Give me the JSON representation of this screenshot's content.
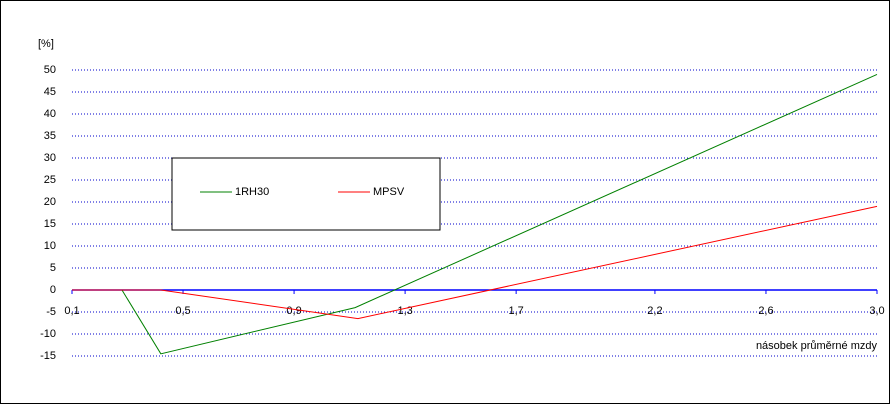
{
  "chart_data": {
    "type": "line",
    "y_label": "[%]",
    "x_label": "násobek průměrné mzdy",
    "xlim": [
      0.1,
      3.0
    ],
    "xticks": [
      {
        "value": 0.1,
        "label": "0,1"
      },
      {
        "value": 0.5,
        "label": "0,5"
      },
      {
        "value": 0.9,
        "label": "0,9"
      },
      {
        "value": 1.3,
        "label": "1,3"
      },
      {
        "value": 1.7,
        "label": "1,7"
      },
      {
        "value": 2.2,
        "label": "2,2"
      },
      {
        "value": 2.6,
        "label": "2,6"
      },
      {
        "value": 3.0,
        "label": "3,0"
      }
    ],
    "ylim": [
      -15,
      50
    ],
    "yticks": [
      -15,
      -10,
      -5,
      0,
      5,
      10,
      15,
      20,
      25,
      30,
      35,
      40,
      45,
      50
    ],
    "grid": true,
    "series": [
      {
        "name": "1RH30",
        "color": "#008000",
        "x": [
          0.1,
          0.28,
          0.42,
          1.12,
          3.0
        ],
        "values": [
          0,
          0,
          -14.5,
          -4,
          49
        ]
      },
      {
        "name": "MPSV",
        "color": "#ff0000",
        "x": [
          0.1,
          0.42,
          1.13,
          3.0
        ],
        "values": [
          0,
          0,
          -6.5,
          19
        ]
      }
    ]
  }
}
